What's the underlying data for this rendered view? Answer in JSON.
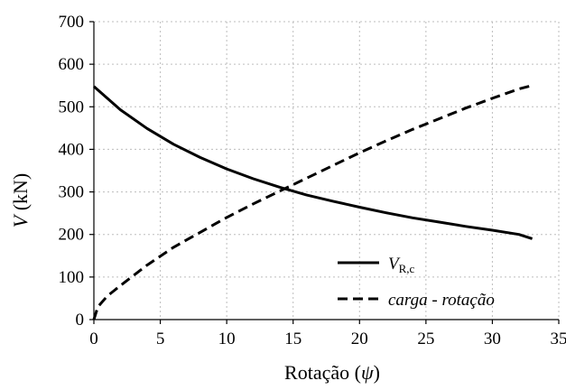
{
  "chart_data": {
    "type": "line",
    "title": "",
    "xlabel": "Rotação (ψ)",
    "ylabel": "V (kN)",
    "xlim": [
      0,
      35
    ],
    "ylim": [
      0,
      700
    ],
    "xticks": [
      0,
      5,
      10,
      15,
      20,
      25,
      30,
      35
    ],
    "yticks": [
      0,
      100,
      200,
      300,
      400,
      500,
      600,
      700
    ],
    "grid": true,
    "legend_position": "bottom-right",
    "series": [
      {
        "name": "V_R,c",
        "name_parts": {
          "main": "V",
          "sub": "R,c"
        },
        "style": "solid",
        "color": "#000000",
        "x": [
          0,
          2,
          4,
          6,
          8,
          10,
          12,
          14,
          16,
          18,
          20,
          22,
          24,
          26,
          28,
          30,
          32,
          33
        ],
        "y": [
          548,
          493,
          449,
          412,
          381,
          354,
          331,
          311,
          293,
          278,
          264,
          251,
          239,
          229,
          219,
          210,
          200,
          190
        ]
      },
      {
        "name": "carga - rotação",
        "style": "dashed",
        "color": "#000000",
        "x": [
          0,
          0.3,
          1,
          2,
          4,
          6,
          8,
          10,
          12,
          14,
          16,
          18,
          20,
          22,
          24,
          26,
          28,
          30,
          32,
          33
        ],
        "y": [
          0,
          30,
          55,
          80,
          128,
          170,
          205,
          240,
          272,
          302,
          332,
          362,
          392,
          420,
          447,
          472,
          497,
          520,
          542,
          550
        ]
      }
    ]
  }
}
